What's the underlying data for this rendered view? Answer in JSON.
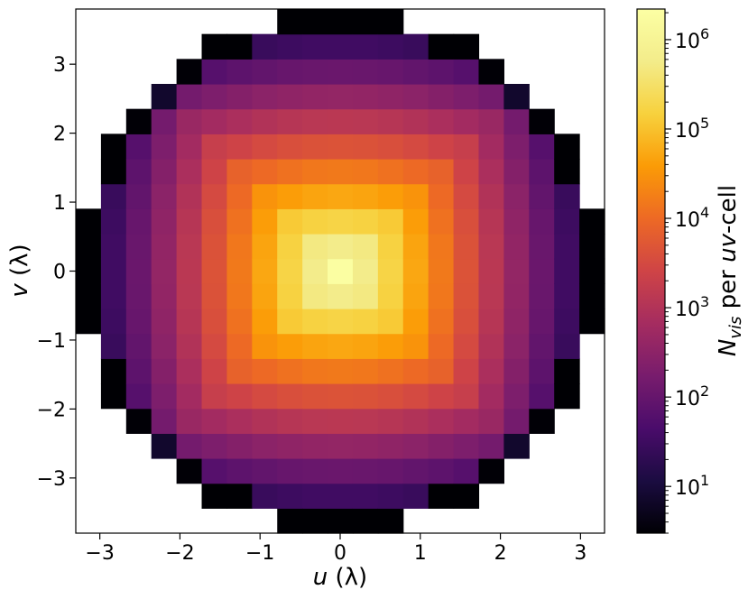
{
  "chart_data": {
    "type": "heatmap",
    "xlabel": "u (λ)",
    "ylabel": "v (λ)",
    "x_axis": {
      "var": "u",
      "unit": "(λ)",
      "lim": [
        -3.3,
        3.3
      ],
      "ticks": [
        -3,
        -2,
        -1,
        0,
        1,
        2,
        3
      ],
      "tick_labels": [
        "−3",
        "−2",
        "−1",
        "0",
        "1",
        "2",
        "3"
      ]
    },
    "y_axis": {
      "var": "v",
      "unit": "(λ)",
      "lim": [
        -3.8,
        3.8
      ],
      "ticks": [
        -3,
        -2,
        -1,
        0,
        1,
        2,
        3
      ],
      "tick_labels": [
        "−3",
        "−2",
        "−1",
        "0",
        "1",
        "2",
        "3"
      ]
    },
    "grid": false,
    "colorbar": {
      "label_main": "N",
      "label_sub": "vis",
      "label_rest": " per ",
      "label_italic": "uv",
      "label_end": "-cell",
      "scale": "log",
      "range": [
        3,
        2200000
      ],
      "colormap": "inferno",
      "ticks": [
        10,
        100,
        1000,
        10000,
        100000,
        1000000
      ],
      "tick_bases": [
        "10",
        "10",
        "10",
        "10",
        "10",
        "10"
      ],
      "tick_exps": [
        "1",
        "2",
        "3",
        "4",
        "5",
        "6"
      ]
    },
    "cells": {
      "nx": 21,
      "ny": 21,
      "u_range": [
        -3.3,
        3.3
      ],
      "v_range": [
        -3.8,
        3.8
      ],
      "description_of_values": "symmetric about the origin; peak ~2e6 at the centre falling to a few counts at the outer ring; empty corner cells",
      "peak": 2000000
    }
  }
}
